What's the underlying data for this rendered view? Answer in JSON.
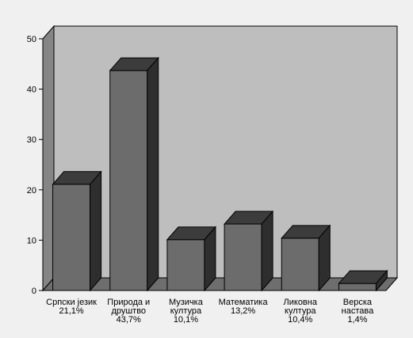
{
  "chart_data": {
    "type": "bar",
    "style": "3d",
    "categories": [
      {
        "line1": "Српски језик",
        "line2": "21,1%"
      },
      {
        "line1": "Природа и",
        "line2": "друштво",
        "line3": "43,7%"
      },
      {
        "line1": "Музичка",
        "line2": "култура",
        "line3": "10,1%"
      },
      {
        "line1": "Математика",
        "line2": "13,2%"
      },
      {
        "line1": "Ликовна",
        "line2": "култура",
        "line3": "10,4%"
      },
      {
        "line1": "Верска",
        "line2": "настава",
        "line3": "1,4%"
      }
    ],
    "values": [
      21.1,
      43.7,
      10.1,
      13.2,
      10.4,
      1.4
    ],
    "ylim": [
      0,
      50
    ],
    "yticks": [
      "0",
      "10",
      "20",
      "30",
      "40",
      "50"
    ],
    "grid": false,
    "colors": {
      "background": "#f0f0f0",
      "plot_back": "#bebebe",
      "plot_side": "#858585",
      "floor": "#6e6e6e",
      "bar_front": "#6c6c6c",
      "bar_top": "#3c3c3c",
      "bar_side": "#2e2e2e",
      "outline": "#000000"
    }
  }
}
